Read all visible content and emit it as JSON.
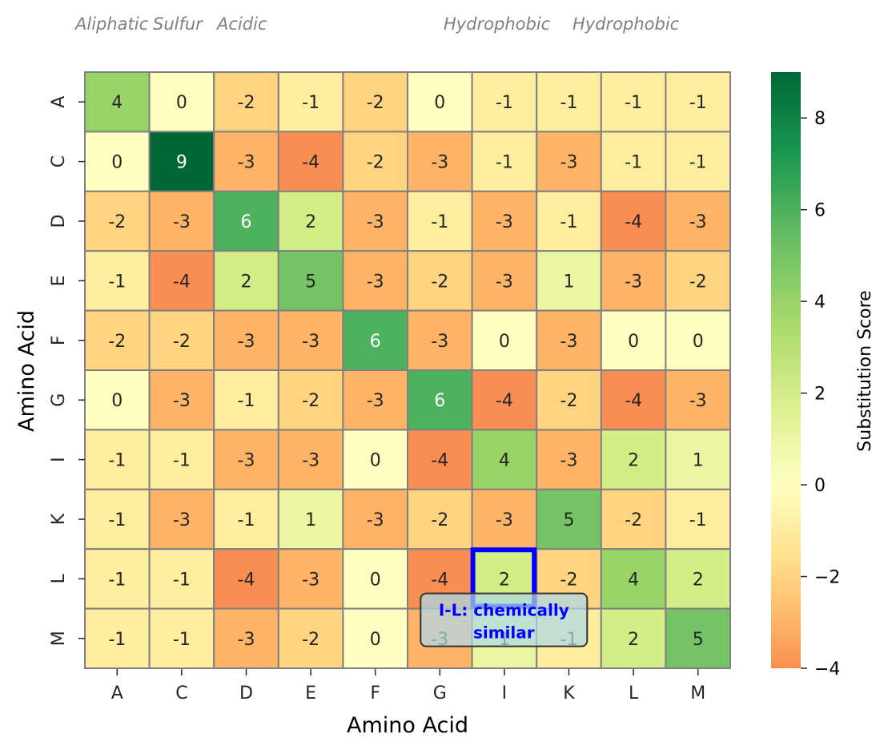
{
  "chart_data": {
    "type": "heatmap",
    "title": "",
    "xlabel": "Amino Acid",
    "ylabel": "Amino Acid",
    "x_categories": [
      "A",
      "C",
      "D",
      "E",
      "F",
      "G",
      "I",
      "K",
      "L",
      "M"
    ],
    "y_categories": [
      "A",
      "C",
      "D",
      "E",
      "F",
      "G",
      "I",
      "K",
      "L",
      "M"
    ],
    "values": [
      [
        4,
        0,
        -2,
        -1,
        -2,
        0,
        -1,
        -1,
        -1,
        -1
      ],
      [
        0,
        9,
        -3,
        -4,
        -2,
        -3,
        -1,
        -3,
        -1,
        -1
      ],
      [
        -2,
        -3,
        6,
        2,
        -3,
        -1,
        -3,
        -1,
        -4,
        -3
      ],
      [
        -1,
        -4,
        2,
        5,
        -3,
        -2,
        -3,
        1,
        -3,
        -2
      ],
      [
        -2,
        -2,
        -3,
        -3,
        6,
        -3,
        0,
        -3,
        0,
        0
      ],
      [
        0,
        -3,
        -1,
        -2,
        -3,
        6,
        -4,
        -2,
        -4,
        -3
      ],
      [
        -1,
        -1,
        -3,
        -3,
        0,
        -4,
        4,
        -3,
        2,
        1
      ],
      [
        -1,
        -3,
        -1,
        1,
        -3,
        -2,
        -3,
        5,
        -2,
        -1
      ],
      [
        -1,
        -1,
        -4,
        -3,
        0,
        -4,
        2,
        -2,
        4,
        2
      ],
      [
        -1,
        -1,
        -3,
        -2,
        0,
        -3,
        1,
        -1,
        2,
        5
      ]
    ],
    "colorbar": {
      "label": "Substitution Score",
      "min": -4,
      "max": 9,
      "ticks": [
        -4,
        -2,
        0,
        2,
        4,
        6,
        8
      ],
      "tick_labels": [
        "−4",
        "−2",
        "0",
        "2",
        "4",
        "6",
        "8"
      ],
      "colormap": "RdYlGn"
    },
    "group_labels": [
      "Aliphatic",
      "Sulfur",
      "Acidic",
      "Hydrophobic",
      "Hydrophobic"
    ],
    "highlight": {
      "row": "L",
      "column": "I",
      "color": "#0000ff",
      "annotation": [
        "I-L: chemically",
        "similar"
      ]
    },
    "grid_color": "#808080"
  }
}
